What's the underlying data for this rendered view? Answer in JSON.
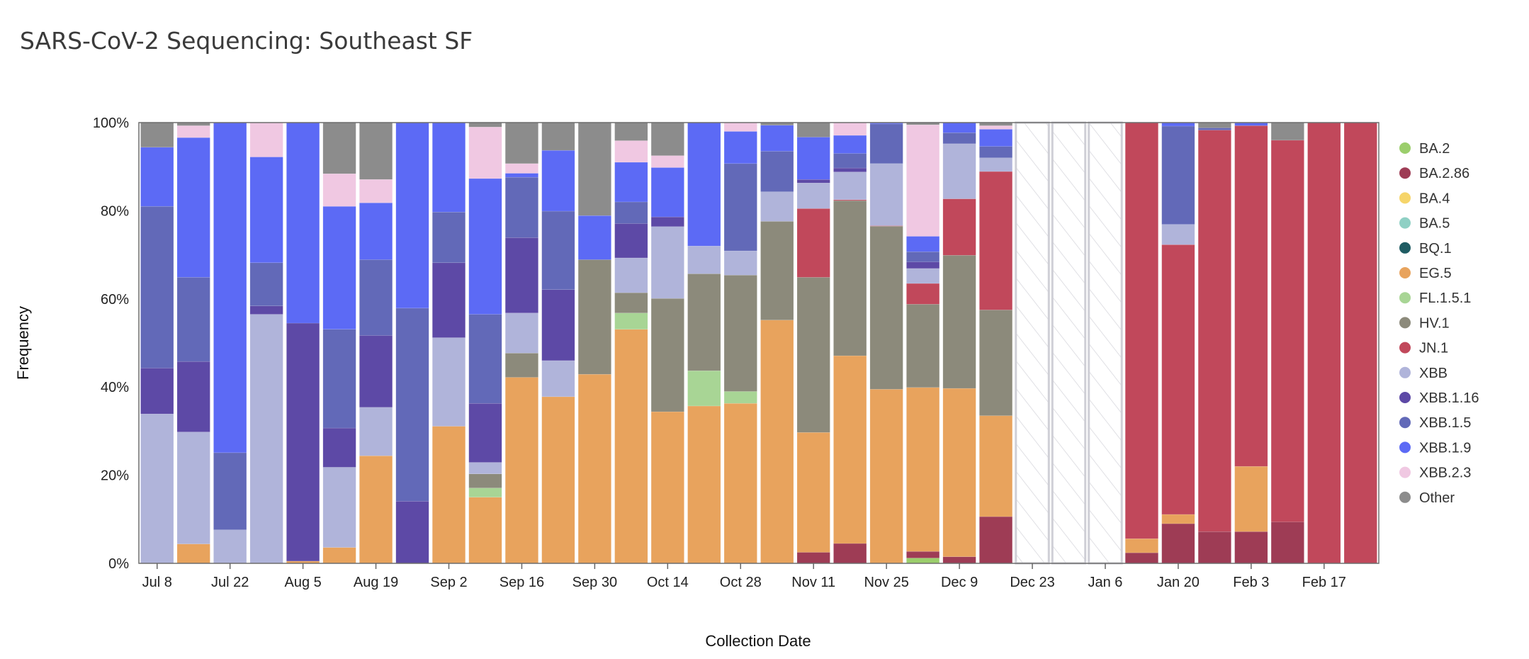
{
  "chart_data": {
    "type": "bar",
    "stacked": true,
    "title": "SARS-CoV-2 Sequencing: Southeast SF",
    "xlabel": "Collection Date",
    "ylabel": "Frequency",
    "ylim": [
      0,
      100
    ],
    "yticks": [
      "0%",
      "20%",
      "40%",
      "60%",
      "80%",
      "100%"
    ],
    "legend_position": "right",
    "series": [
      {
        "name": "BA.2",
        "color": "#9bce6c"
      },
      {
        "name": "BA.2.86",
        "color": "#9e3c55"
      },
      {
        "name": "BA.4",
        "color": "#f6d56a"
      },
      {
        "name": "BA.5",
        "color": "#8fd0c4"
      },
      {
        "name": "BQ.1",
        "color": "#1f5c63"
      },
      {
        "name": "EG.5",
        "color": "#e8a35d"
      },
      {
        "name": "FL.1.5.1",
        "color": "#a8d595"
      },
      {
        "name": "HV.1",
        "color": "#8c8a7b"
      },
      {
        "name": "JN.1",
        "color": "#c1485b"
      },
      {
        "name": "XBB",
        "color": "#b0b4da"
      },
      {
        "name": "XBB.1.16",
        "color": "#5d49a6"
      },
      {
        "name": "XBB.1.5",
        "color": "#6269b8"
      },
      {
        "name": "XBB.1.9",
        "color": "#5c6af5"
      },
      {
        "name": "XBB.2.3",
        "color": "#f0c8e2"
      },
      {
        "name": "Other",
        "color": "#8c8c8c"
      }
    ],
    "weeks": [
      {
        "date": "Jul 8",
        "label": "Jul 8",
        "values": [
          0,
          0,
          0,
          0,
          0,
          0,
          0,
          0,
          0,
          33.9,
          10.4,
          36.7,
          13.4,
          0,
          5.6
        ]
      },
      {
        "date": "Jul 15",
        "label": "",
        "values": [
          0,
          0,
          0,
          0,
          0,
          4.4,
          0,
          0,
          0,
          25.4,
          16.0,
          19.1,
          31.7,
          2.7,
          0.7
        ]
      },
      {
        "date": "Jul 22",
        "label": "Jul 22",
        "values": [
          0,
          0,
          0,
          0,
          0,
          0,
          0,
          0,
          0,
          7.6,
          0,
          17.5,
          74.9,
          0,
          0
        ]
      },
      {
        "date": "Jul 29",
        "label": "",
        "values": [
          0,
          0,
          0,
          0,
          0,
          0,
          0,
          0,
          0,
          56.5,
          1.9,
          9.8,
          24.0,
          7.8,
          0
        ]
      },
      {
        "date": "Aug 5",
        "label": "Aug 5",
        "values": [
          0,
          0,
          0,
          0,
          0,
          0.5,
          0,
          0,
          0,
          0,
          54.0,
          0,
          45.5,
          0,
          0
        ]
      },
      {
        "date": "Aug 12",
        "label": "",
        "values": [
          0,
          0,
          0,
          0,
          0,
          3.6,
          0,
          0,
          0,
          18.2,
          8.9,
          22.4,
          27.9,
          7.4,
          11.6
        ]
      },
      {
        "date": "Aug 19",
        "label": "Aug 19",
        "values": [
          0,
          0,
          0,
          0,
          0,
          24.4,
          0,
          0,
          0,
          11.0,
          16.3,
          17.2,
          12.9,
          5.3,
          12.9
        ]
      },
      {
        "date": "Aug 26",
        "label": "",
        "values": [
          0,
          0,
          0,
          0,
          0,
          0,
          0,
          0,
          0,
          0,
          14.1,
          43.8,
          42.1,
          0,
          0
        ]
      },
      {
        "date": "Sep 2",
        "label": "Sep 2",
        "values": [
          0,
          0,
          0,
          0,
          0,
          31.1,
          0,
          0,
          0,
          20.1,
          17.0,
          11.5,
          20.3,
          0,
          0
        ]
      },
      {
        "date": "Sep 9",
        "label": "",
        "values": [
          0,
          0,
          0,
          0,
          0,
          15.0,
          2.1,
          3.2,
          0,
          2.6,
          13.4,
          20.2,
          30.8,
          11.7,
          1.0
        ]
      },
      {
        "date": "Sep 16",
        "label": "Sep 16",
        "values": [
          0,
          0,
          0,
          0,
          0,
          42.2,
          0,
          5.5,
          0,
          9.1,
          17.1,
          13.7,
          0.9,
          2.2,
          9.3
        ]
      },
      {
        "date": "Sep 23",
        "label": "",
        "values": [
          0,
          0,
          0,
          0,
          0,
          37.8,
          0,
          0,
          0,
          8.2,
          16.1,
          17.8,
          13.8,
          0,
          6.3
        ]
      },
      {
        "date": "Sep 30",
        "label": "Sep 30",
        "values": [
          0,
          0,
          0,
          0,
          0,
          42.9,
          0,
          26.0,
          0,
          0,
          0,
          0,
          10.0,
          0,
          21.1
        ]
      },
      {
        "date": "Oct 7",
        "label": "",
        "values": [
          0,
          0,
          0,
          0,
          0,
          53.1,
          3.7,
          4.6,
          0,
          7.9,
          7.8,
          4.9,
          9.0,
          4.9,
          4.1
        ]
      },
      {
        "date": "Oct 14",
        "label": "Oct 14",
        "values": [
          0,
          0,
          0,
          0,
          0,
          34.4,
          0,
          25.7,
          0,
          16.3,
          2.2,
          0,
          11.2,
          2.7,
          7.5
        ]
      },
      {
        "date": "Oct 21",
        "label": "",
        "values": [
          0,
          0,
          0,
          0,
          0,
          35.7,
          8.0,
          22.0,
          0,
          6.3,
          0,
          0,
          28.0,
          0,
          0
        ]
      },
      {
        "date": "Oct 28",
        "label": "Oct 28",
        "values": [
          0,
          0,
          0,
          0,
          0,
          36.3,
          2.7,
          26.4,
          0,
          5.5,
          0,
          19.8,
          7.3,
          2.0,
          0
        ]
      },
      {
        "date": "Nov 4",
        "label": "",
        "values": [
          0,
          0,
          0,
          0,
          0,
          55.2,
          0,
          22.4,
          0,
          6.7,
          0,
          9.2,
          5.9,
          0,
          0.6
        ]
      },
      {
        "date": "Nov 11",
        "label": "Nov 11",
        "values": [
          0,
          2.5,
          0,
          0,
          0,
          27.2,
          0,
          35.2,
          15.6,
          5.8,
          0.8,
          0,
          9.6,
          0,
          3.3
        ]
      },
      {
        "date": "Nov 18",
        "label": "",
        "values": [
          0,
          4.5,
          0,
          0,
          0,
          42.6,
          0,
          35.2,
          0.2,
          6.3,
          0.9,
          3.3,
          4.1,
          2.9,
          0
        ]
      },
      {
        "date": "Nov 25",
        "label": "Nov 25",
        "values": [
          0,
          0,
          0,
          0,
          0,
          39.5,
          0,
          37.0,
          0.1,
          14.1,
          0,
          9.0,
          0.3,
          0,
          0
        ]
      },
      {
        "date": "Dec 2",
        "label": "",
        "values": [
          1.2,
          1.5,
          0,
          0,
          0,
          37.2,
          0,
          18.9,
          4.7,
          3.4,
          1.5,
          2.3,
          3.5,
          25.3,
          0.5
        ]
      },
      {
        "date": "Dec 9",
        "label": "Dec 9",
        "values": [
          0,
          1.5,
          0,
          0,
          0,
          38.2,
          0,
          30.2,
          12.8,
          12.5,
          0,
          2.5,
          2.3,
          0,
          0
        ]
      },
      {
        "date": "Dec 16",
        "label": "",
        "values": [
          0,
          10.6,
          0,
          0,
          0,
          22.9,
          0,
          24.0,
          31.4,
          3.1,
          0,
          2.6,
          3.9,
          0.8,
          0.7
        ]
      },
      {
        "date": "Dec 23",
        "label": "Dec 23",
        "values": null
      },
      {
        "date": "Dec 30",
        "label": "",
        "values": null
      },
      {
        "date": "Jan 6",
        "label": "Jan 6",
        "values": null
      },
      {
        "date": "Jan 13",
        "label": "",
        "values": [
          0,
          2.4,
          0,
          0,
          0,
          3.2,
          0,
          0,
          94.4,
          0,
          0,
          0,
          0,
          0,
          0
        ]
      },
      {
        "date": "Jan 20",
        "label": "Jan 20",
        "values": [
          0,
          9.0,
          0,
          0,
          0,
          2.1,
          0,
          0,
          61.2,
          4.6,
          0,
          22.3,
          0.8,
          0,
          0
        ]
      },
      {
        "date": "Jan 27",
        "label": "",
        "values": [
          0,
          7.2,
          0,
          0,
          0,
          0,
          0,
          0,
          91.1,
          0,
          0,
          0.5,
          0,
          0,
          1.2
        ]
      },
      {
        "date": "Feb 3",
        "label": "Feb 3",
        "values": [
          0,
          7.2,
          0,
          0,
          0,
          14.8,
          0,
          0,
          77.3,
          0,
          0,
          0,
          0.7,
          0,
          0
        ]
      },
      {
        "date": "Feb 10",
        "label": "",
        "values": [
          0,
          9.4,
          0,
          0,
          0,
          0,
          0,
          0,
          86.6,
          0,
          0,
          0,
          0,
          0,
          4.0
        ]
      },
      {
        "date": "Feb 17",
        "label": "Feb 17",
        "values": [
          0,
          0,
          0,
          0,
          0,
          0,
          0,
          0,
          100,
          0,
          0,
          0,
          0,
          0,
          0
        ]
      },
      {
        "date": "Feb 24",
        "label": "",
        "values": [
          0,
          0,
          0,
          0,
          0,
          0,
          0,
          0,
          100,
          0,
          0,
          0,
          0,
          0,
          0
        ]
      }
    ]
  }
}
